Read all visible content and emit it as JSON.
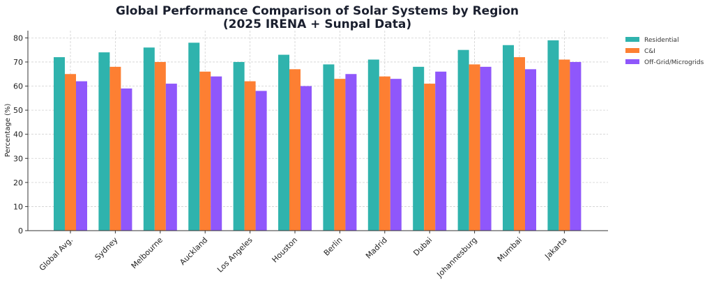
{
  "chart_data": {
    "type": "bar",
    "title_line1": "Global Performance Comparison of Solar Systems by Region",
    "title_line2": "(2025 IRENA + Sunpal Data)",
    "xlabel": "",
    "ylabel": "Percentage (%)",
    "ylim": [
      0,
      83
    ],
    "yticks": [
      0,
      10,
      20,
      30,
      40,
      50,
      60,
      70,
      80
    ],
    "grid": true,
    "legend_position": "outside-top-right",
    "categories": [
      "Global Avg.",
      "Sydney",
      "Melbourne",
      "Auckland",
      "Los Angeles",
      "Houston",
      "Berlin",
      "Madrid",
      "Dubai",
      "Johannesburg",
      "Mumbai",
      "Jakarta"
    ],
    "series": [
      {
        "name": "Residential",
        "color": "#2fb3ad",
        "values": [
          72,
          74,
          76,
          78,
          70,
          73,
          69,
          71,
          68,
          75,
          77,
          79
        ]
      },
      {
        "name": "C&I",
        "color": "#fd7f32",
        "values": [
          65,
          68,
          70,
          66,
          62,
          67,
          63,
          64,
          61,
          69,
          72,
          71
        ]
      },
      {
        "name": "Off-Grid/Microgrids",
        "color": "#8f57fb",
        "values": [
          62,
          59,
          61,
          64,
          58,
          60,
          65,
          63,
          66,
          68,
          67,
          70
        ]
      }
    ]
  }
}
